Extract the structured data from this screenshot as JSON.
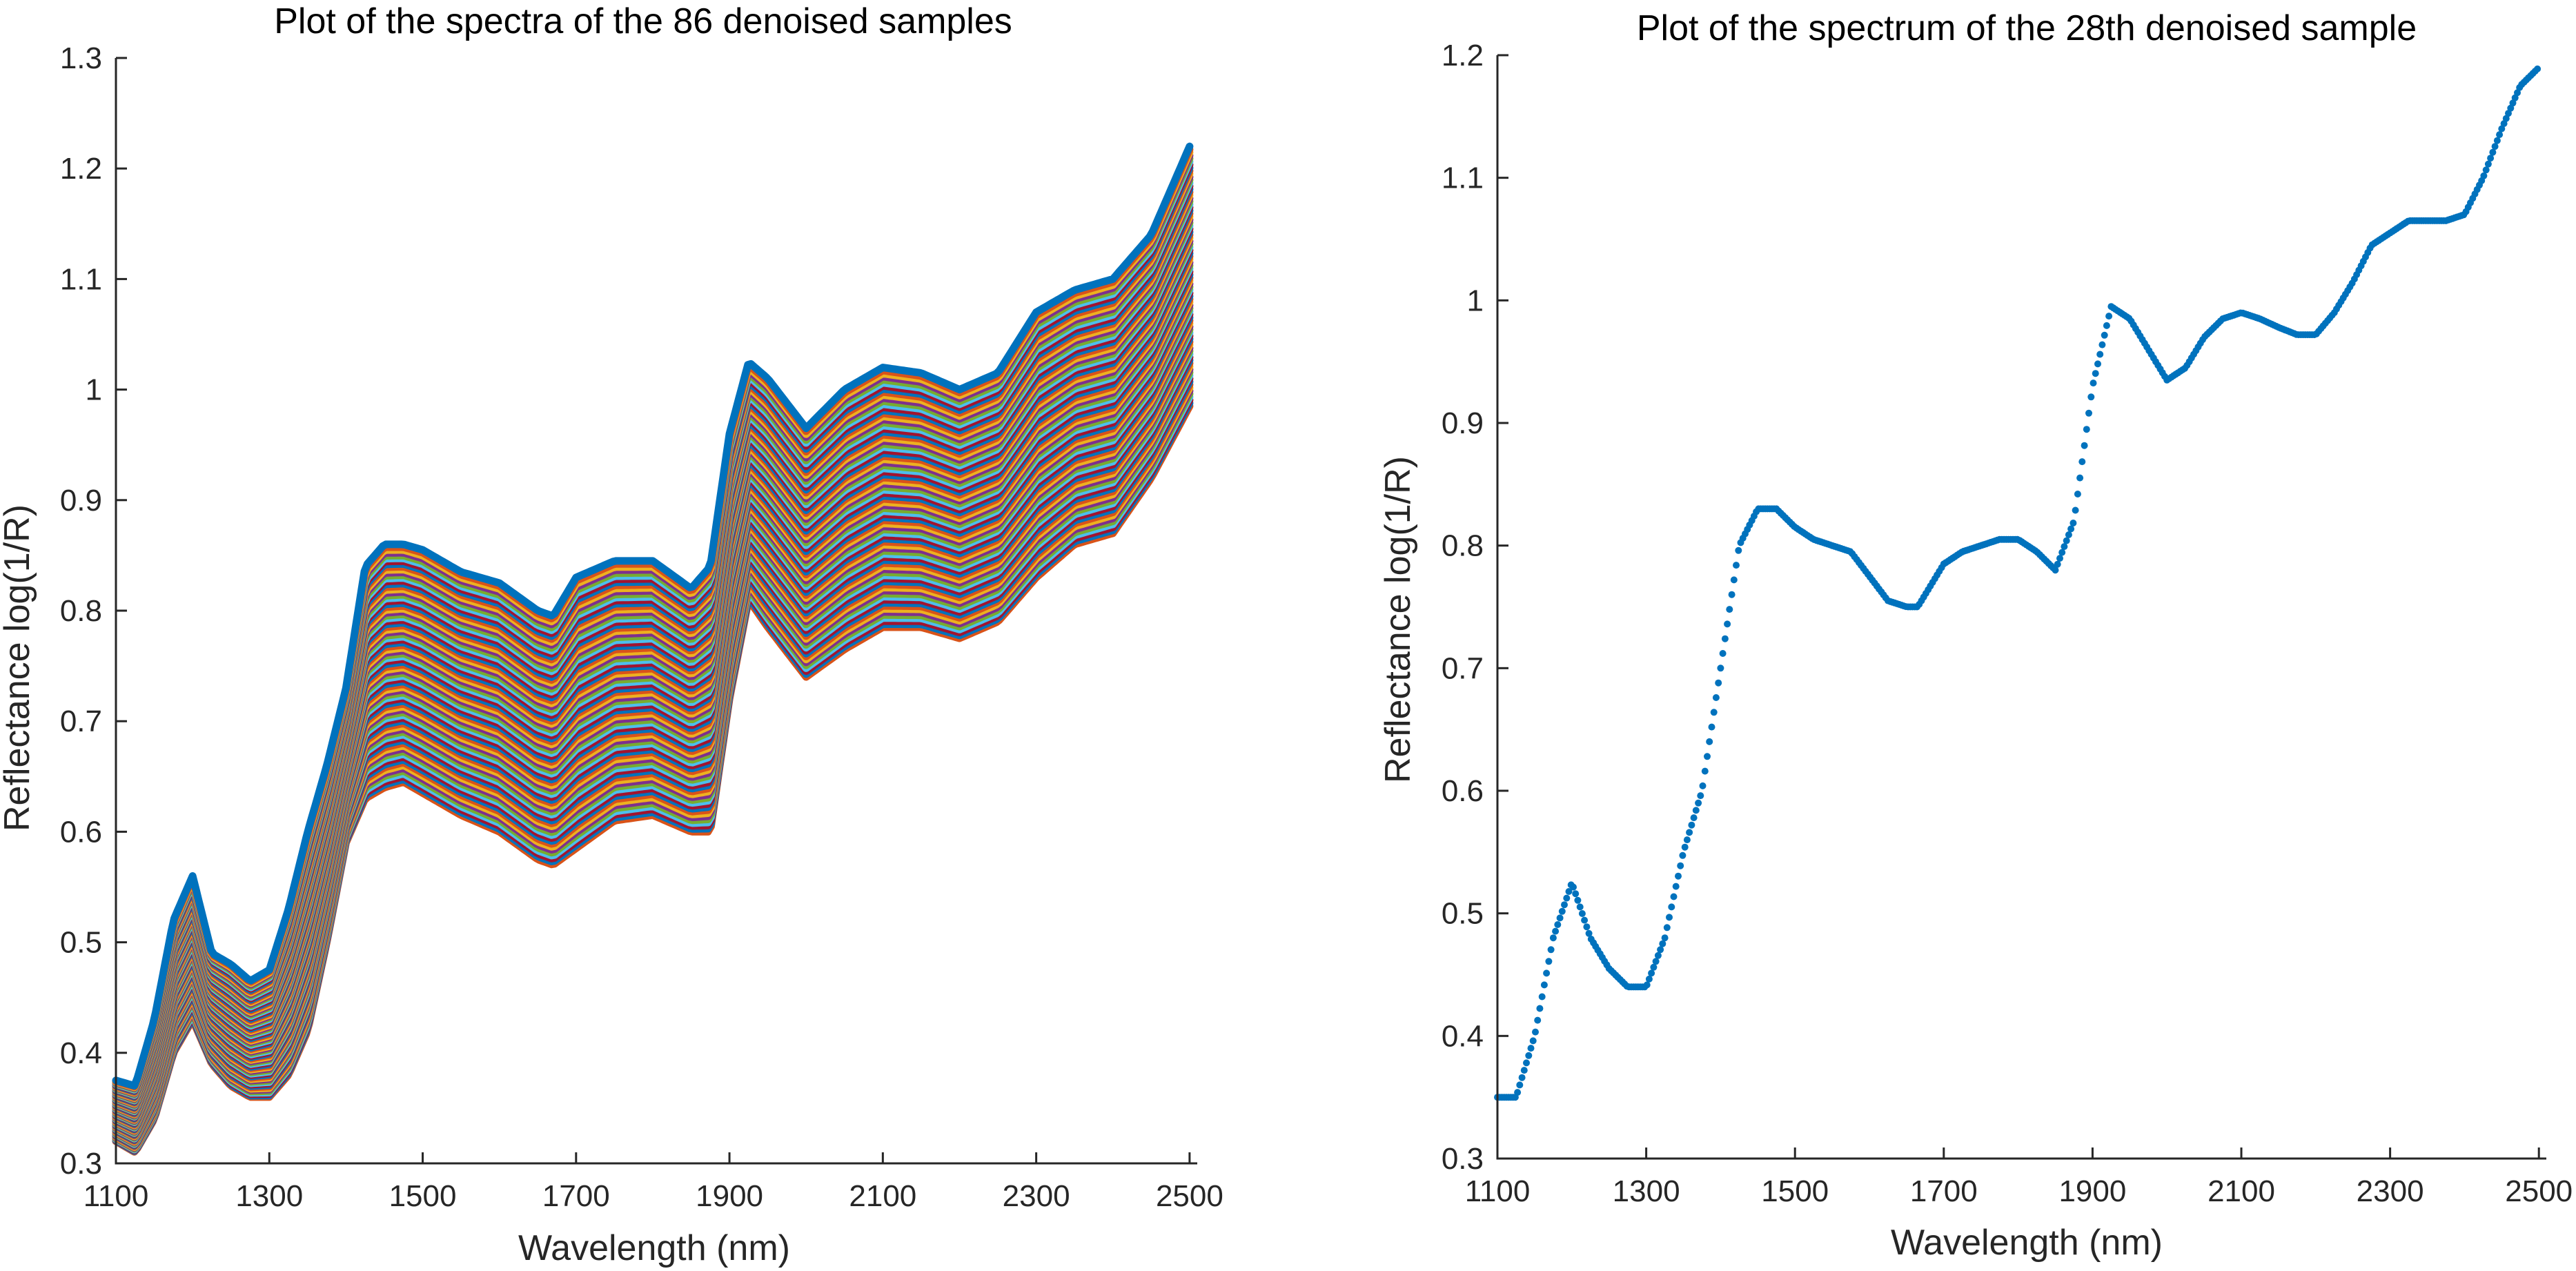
{
  "charts": [
    {
      "title": "Plot of the spectra of the 86 denoised samples",
      "xlabel": "Wavelength (nm)",
      "ylabel": "Reflectance  log(1/R)",
      "xticks": [
        "1100",
        "1300",
        "1500",
        "1700",
        "1900",
        "2100",
        "2300",
        "2500"
      ],
      "yticks": [
        "0.3",
        "0.4",
        "0.5",
        "0.6",
        "0.7",
        "0.8",
        "0.9",
        "1",
        "1.1",
        "1.2",
        "1.3"
      ]
    },
    {
      "title": "Plot of the spectrum of the 28th denoised sample",
      "xlabel": "Wavelength (nm)",
      "ylabel": "Reflectance  log(1/R)",
      "xticks": [
        "1100",
        "1300",
        "1500",
        "1700",
        "1900",
        "2100",
        "2300",
        "2500"
      ],
      "yticks": [
        "0.3",
        "0.4",
        "0.5",
        "0.6",
        "0.7",
        "0.8",
        "0.9",
        "1",
        "1.1",
        "1.2"
      ]
    }
  ],
  "chart_data": [
    {
      "type": "line",
      "title": "Plot of the spectra of the 86 denoised samples",
      "xlabel": "Wavelength (nm)",
      "ylabel": "Reflectance  log(1/R)",
      "xlim": [
        1100,
        2510
      ],
      "ylim": [
        0.3,
        1.3
      ],
      "n_samples": 86,
      "series_style": "dense band of overlapping spectra from a lower envelope to an upper envelope; sample k = lower + (k/85)·(upper − lower)",
      "colors": [
        "#0072BD",
        "#D95319",
        "#EDB120",
        "#7E2F8E",
        "#77AC30",
        "#4DBEEE",
        "#A2142F"
      ],
      "x": [
        1100,
        1125,
        1150,
        1175,
        1200,
        1225,
        1250,
        1275,
        1300,
        1325,
        1350,
        1375,
        1400,
        1425,
        1450,
        1475,
        1500,
        1550,
        1600,
        1650,
        1670,
        1700,
        1750,
        1800,
        1850,
        1875,
        1900,
        1925,
        1950,
        2000,
        2050,
        2100,
        2150,
        2200,
        2250,
        2300,
        2350,
        2400,
        2450,
        2500
      ],
      "upper": [
        0.375,
        0.37,
        0.43,
        0.52,
        0.56,
        0.49,
        0.48,
        0.465,
        0.475,
        0.53,
        0.6,
        0.66,
        0.73,
        0.84,
        0.86,
        0.86,
        0.855,
        0.835,
        0.825,
        0.8,
        0.795,
        0.83,
        0.845,
        0.845,
        0.82,
        0.84,
        0.96,
        1.025,
        1.01,
        0.965,
        1.0,
        1.02,
        1.015,
        1.0,
        1.015,
        1.07,
        1.09,
        1.1,
        1.14,
        1.22
      ],
      "lower": [
        0.32,
        0.31,
        0.34,
        0.4,
        0.43,
        0.39,
        0.37,
        0.36,
        0.36,
        0.38,
        0.42,
        0.5,
        0.59,
        0.63,
        0.64,
        0.645,
        0.635,
        0.615,
        0.6,
        0.575,
        0.57,
        0.585,
        0.61,
        0.615,
        0.6,
        0.6,
        0.72,
        0.81,
        0.785,
        0.74,
        0.765,
        0.785,
        0.785,
        0.775,
        0.79,
        0.83,
        0.86,
        0.87,
        0.92,
        0.985
      ]
    },
    {
      "type": "scatter",
      "title": "Plot of the spectrum of the 28th denoised sample",
      "xlabel": "Wavelength (nm)",
      "ylabel": "Reflectance  log(1/R)",
      "xlim": [
        1100,
        2510
      ],
      "ylim": [
        0.3,
        1.2
      ],
      "series_style": "single spectrum drawn as densely sampled dots",
      "color": "#0072BD",
      "x": [
        1100,
        1125,
        1150,
        1175,
        1200,
        1225,
        1250,
        1275,
        1300,
        1325,
        1350,
        1375,
        1400,
        1425,
        1450,
        1475,
        1500,
        1525,
        1550,
        1575,
        1600,
        1625,
        1650,
        1665,
        1700,
        1725,
        1750,
        1775,
        1800,
        1825,
        1850,
        1875,
        1900,
        1925,
        1950,
        1975,
        2000,
        2025,
        2050,
        2075,
        2100,
        2125,
        2150,
        2175,
        2200,
        2225,
        2250,
        2275,
        2300,
        2325,
        2350,
        2375,
        2400,
        2425,
        2450,
        2475,
        2500
      ],
      "y": [
        0.35,
        0.35,
        0.4,
        0.48,
        0.525,
        0.48,
        0.455,
        0.44,
        0.44,
        0.48,
        0.55,
        0.6,
        0.7,
        0.8,
        0.83,
        0.83,
        0.815,
        0.805,
        0.8,
        0.795,
        0.775,
        0.755,
        0.75,
        0.75,
        0.785,
        0.795,
        0.8,
        0.805,
        0.805,
        0.795,
        0.78,
        0.82,
        0.93,
        0.995,
        0.985,
        0.96,
        0.935,
        0.945,
        0.97,
        0.985,
        0.99,
        0.985,
        0.978,
        0.972,
        0.972,
        0.99,
        1.015,
        1.045,
        1.055,
        1.065,
        1.065,
        1.065,
        1.07,
        1.1,
        1.14,
        1.175,
        1.19
      ]
    }
  ]
}
